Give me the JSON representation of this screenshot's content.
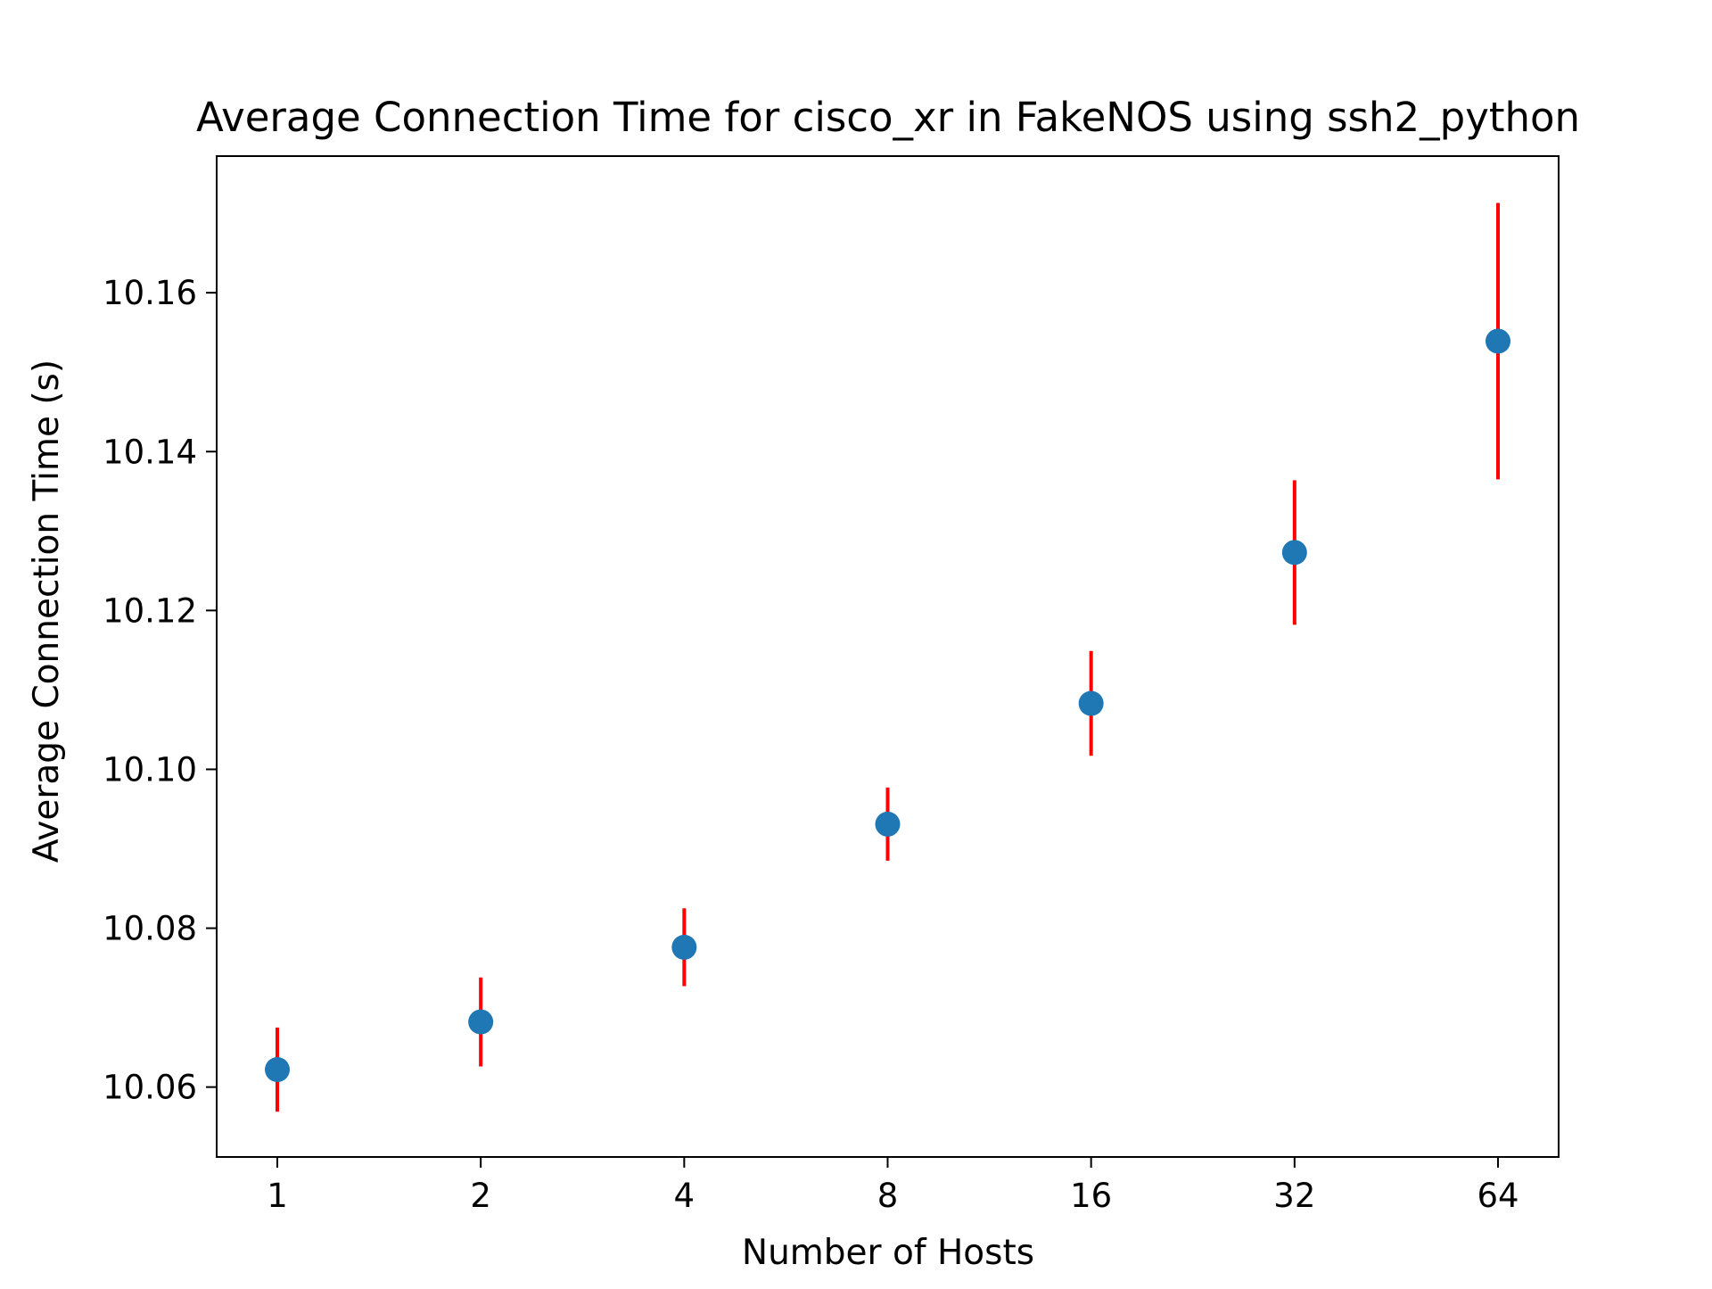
{
  "chart_data": {
    "type": "scatter",
    "title": "Average Connection Time for cisco_xr in FakeNOS using ssh2_python",
    "xlabel": "Number of Hosts",
    "ylabel": "Average Connection Time (s)",
    "x_tick_labels": [
      "1",
      "2",
      "4",
      "8",
      "16",
      "32",
      "64"
    ],
    "y_ticks": [
      10.06,
      10.08,
      10.1,
      10.12,
      10.14,
      10.16
    ],
    "y_tick_labels": [
      "10.06",
      "10.08",
      "10.10",
      "10.12",
      "10.14",
      "10.16"
    ],
    "ylim": [
      10.0512,
      10.1772
    ],
    "x_scale": "log2",
    "grid": false,
    "series": [
      {
        "x": [
          1,
          2,
          4,
          8,
          16,
          32,
          64
        ],
        "values": [
          10.0622,
          10.0682,
          10.0776,
          10.0931,
          10.1083,
          10.1273,
          10.1539
        ],
        "error": [
          0.0053,
          0.0056,
          0.0049,
          0.0046,
          0.0066,
          0.0091,
          0.0174
        ]
      }
    ],
    "colors": {
      "marker": "#1f77b4",
      "errorbar": "#ff0000",
      "axes": "#000000"
    }
  }
}
